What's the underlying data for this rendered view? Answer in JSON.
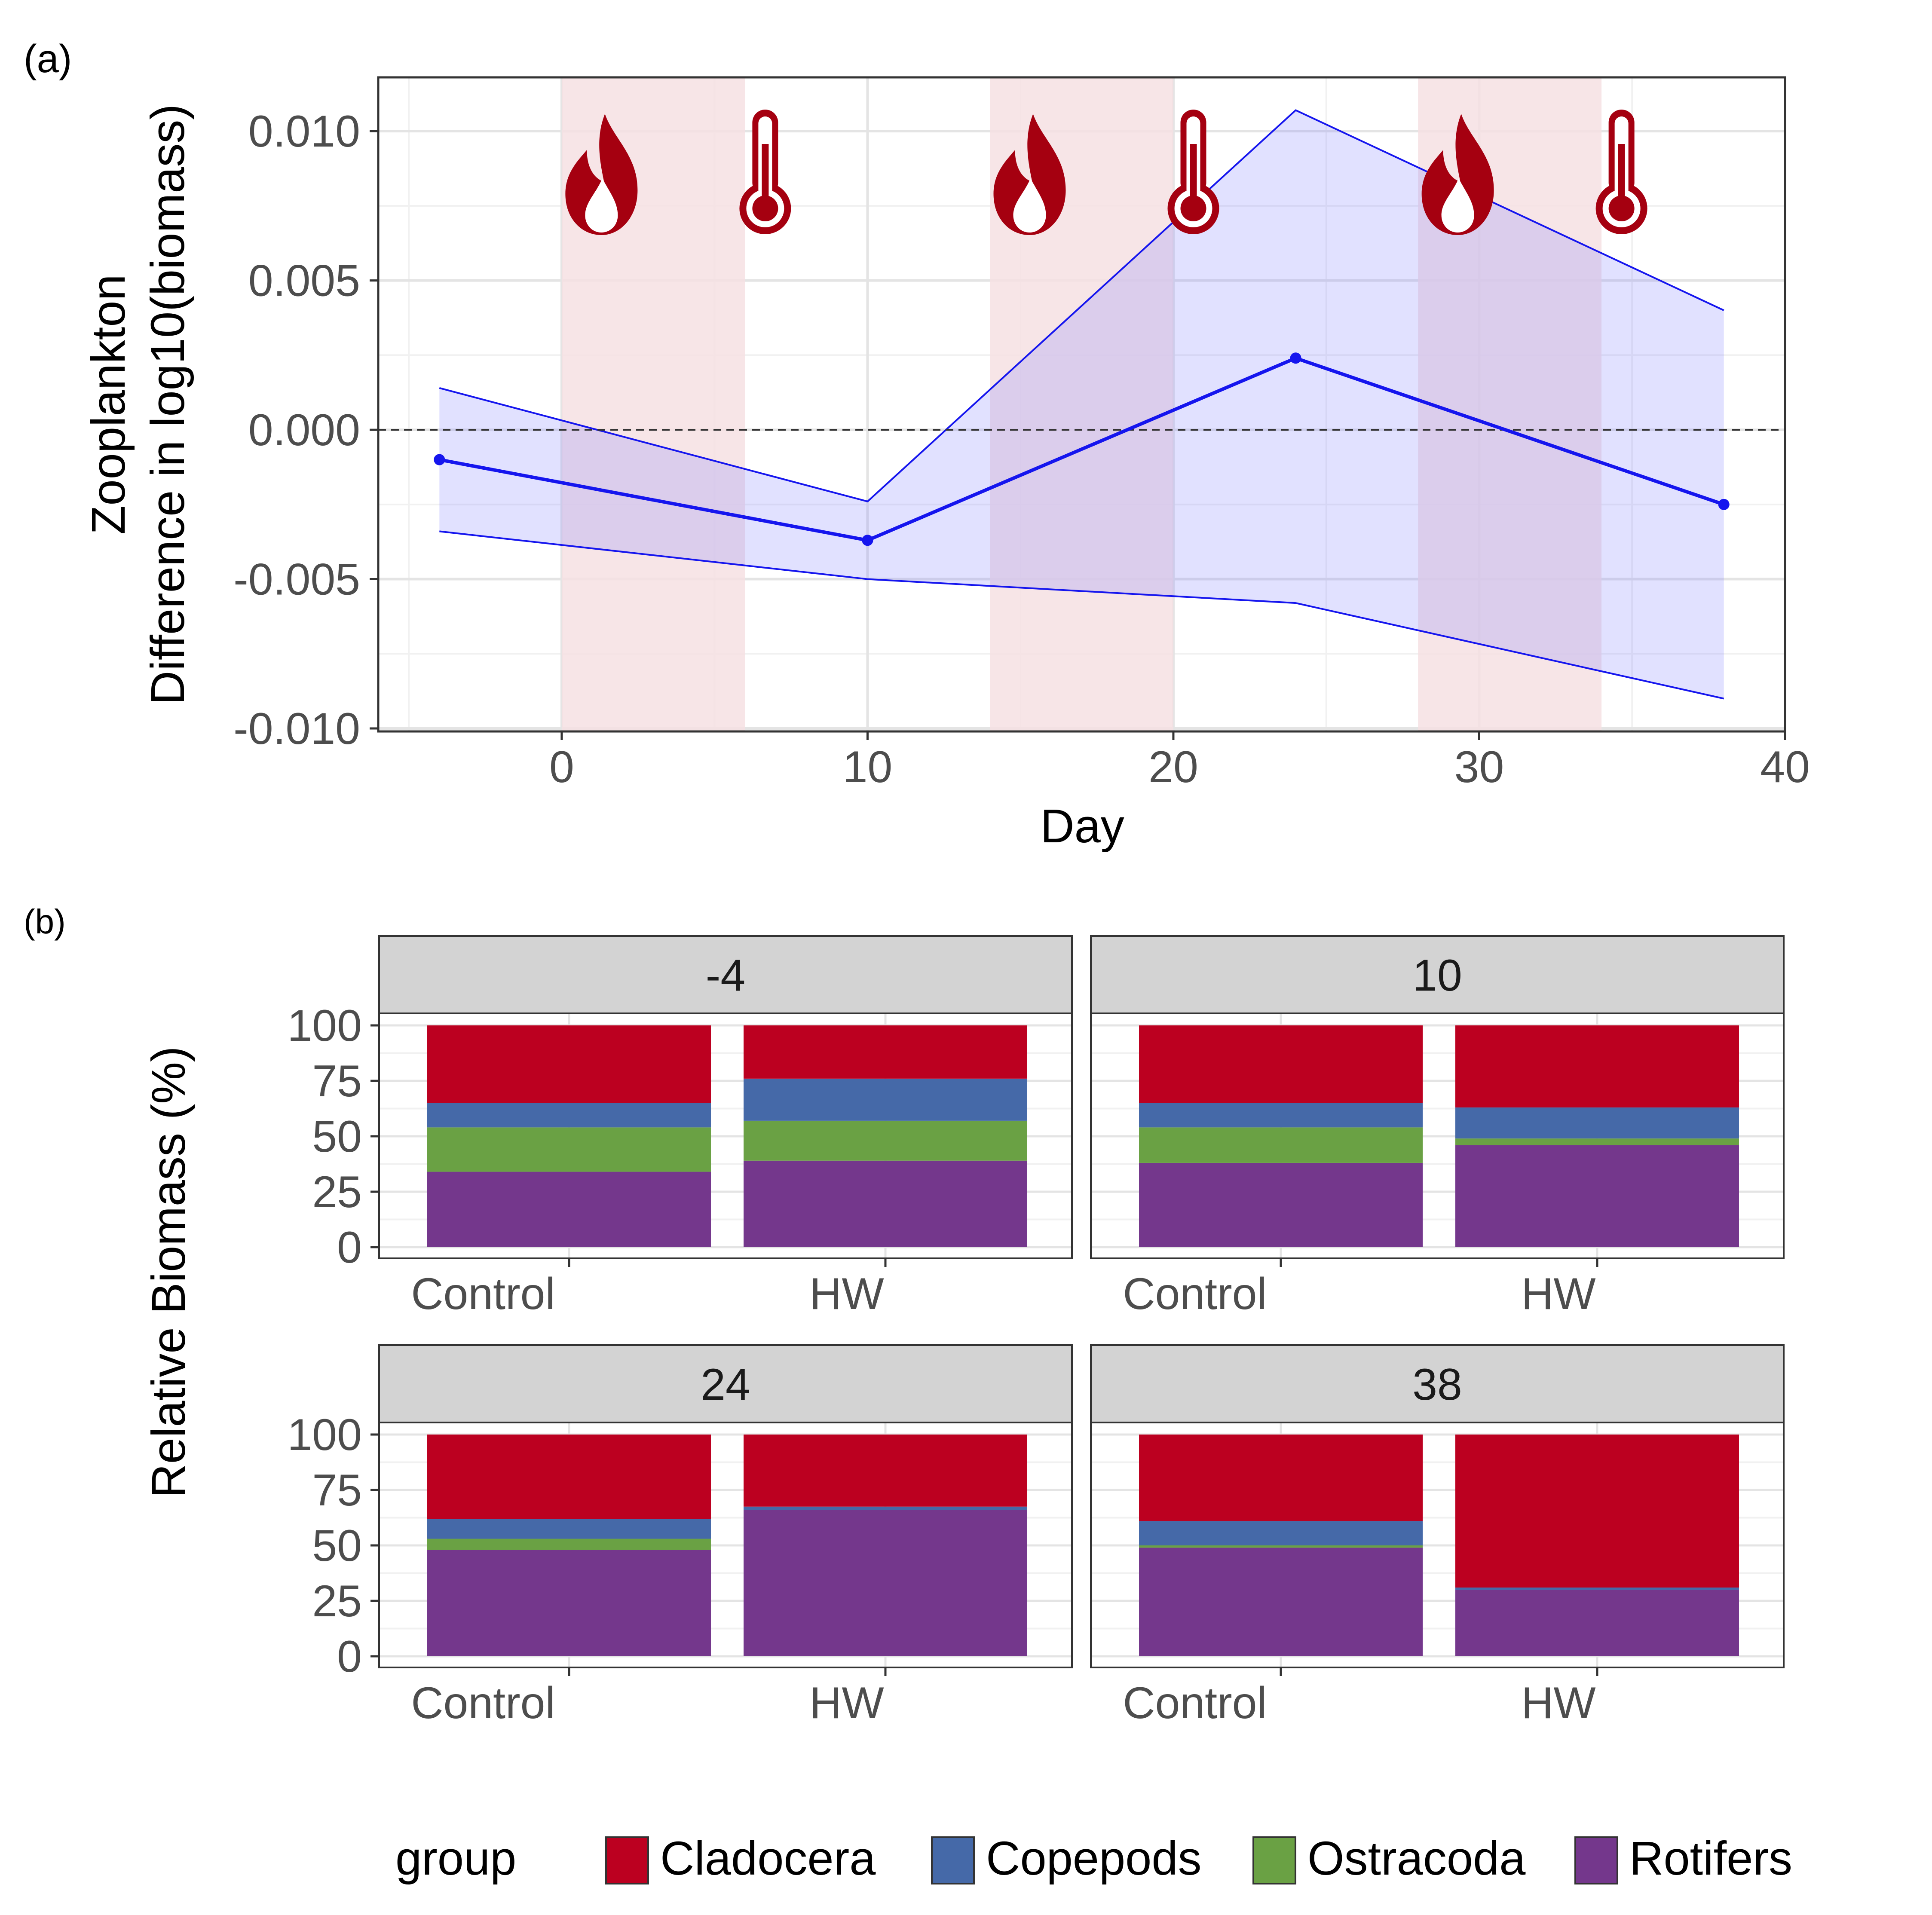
{
  "chart_data": [
    {
      "panel_label": "(a)",
      "type": "line",
      "xlabel": "Day",
      "ylabel_lines": [
        "Zooplankton",
        "Difference in log10(biomass)"
      ],
      "xlim": [
        -6,
        40
      ],
      "ylim": [
        -0.0101,
        0.0118
      ],
      "x_ticks": [
        0,
        10,
        20,
        30,
        40
      ],
      "x_tick_labels": [
        "0",
        "10",
        "20",
        "30",
        "40"
      ],
      "y_ticks": [
        -0.01,
        -0.005,
        0.0,
        0.005,
        0.01
      ],
      "y_tick_labels": [
        "-0.010",
        "-0.005",
        "0.000",
        "0.005",
        "0.010"
      ],
      "grid": true,
      "reference_line": 0,
      "series": [
        {
          "x": [
            -4,
            10,
            24,
            38
          ],
          "y": [
            -0.001,
            -0.0037,
            0.0024,
            -0.0025
          ],
          "lower": [
            -0.0034,
            -0.005,
            -0.0058,
            -0.009
          ],
          "upper": [
            0.0014,
            -0.0024,
            0.0107,
            0.004
          ],
          "color": "#1515ee",
          "ribbon_color": "#dcdcfb"
        }
      ],
      "shaded_periods": [
        [
          0,
          6
        ],
        [
          14,
          20
        ],
        [
          28,
          34
        ]
      ],
      "shaded_color": "#f6e1e3",
      "icons": [
        "fire-icon",
        "thermometer-icon"
      ],
      "icon_color": "#a50010"
    },
    {
      "panel_label": "(b)",
      "type": "bar",
      "stacked": true,
      "ylabel": "Relative Biomass (%)",
      "ylim": [
        0,
        100
      ],
      "y_ticks": [
        0,
        25,
        50,
        75,
        100
      ],
      "y_tick_labels": [
        "0",
        "25",
        "50",
        "75",
        "100"
      ],
      "categories": [
        "Control",
        "HW"
      ],
      "legend_title": "group",
      "legend_position": "bottom",
      "groups": [
        {
          "name": "Cladocera",
          "color": "#bc0020"
        },
        {
          "name": "Copepods",
          "color": "#4569a8"
        },
        {
          "name": "Ostracoda",
          "color": "#6aa144"
        },
        {
          "name": "Rotifers",
          "color": "#74378c"
        }
      ],
      "facets": [
        {
          "label": "-4",
          "values": {
            "Control": {
              "Rotifers": 34,
              "Ostracoda": 20,
              "Copepods": 11,
              "Cladocera": 35
            },
            "HW": {
              "Rotifers": 39,
              "Ostracoda": 18,
              "Copepods": 19,
              "Cladocera": 24
            }
          }
        },
        {
          "label": "10",
          "values": {
            "Control": {
              "Rotifers": 38,
              "Ostracoda": 16,
              "Copepods": 11,
              "Cladocera": 35
            },
            "HW": {
              "Rotifers": 46,
              "Ostracoda": 3,
              "Copepods": 14,
              "Cladocera": 37
            }
          }
        },
        {
          "label": "24",
          "values": {
            "Control": {
              "Rotifers": 48,
              "Ostracoda": 5,
              "Copepods": 9,
              "Cladocera": 38
            },
            "HW": {
              "Rotifers": 66,
              "Ostracoda": 0,
              "Copepods": 1.5,
              "Cladocera": 32.5
            }
          }
        },
        {
          "label": "38",
          "values": {
            "Control": {
              "Rotifers": 49,
              "Ostracoda": 1,
              "Copepods": 11,
              "Cladocera": 39
            },
            "HW": {
              "Rotifers": 30,
              "Ostracoda": 0,
              "Copepods": 1,
              "Cladocera": 69
            }
          }
        }
      ]
    }
  ]
}
